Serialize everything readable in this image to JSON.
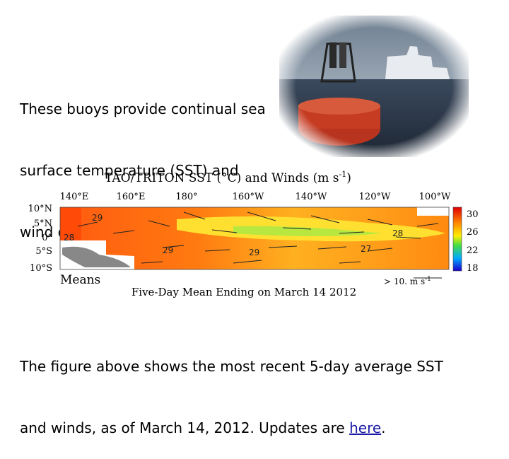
{
  "paragraph1": {
    "lines": [
      "These buoys provide continual sea",
      "surface temperature (SST) and",
      "wind data."
    ]
  },
  "figure": {
    "title": "TAO/TRITON SST (°C) and Winds (m s",
    "title_superscript": "-1",
    "title_end": ")",
    "longitudes": [
      "140°E",
      "160°E",
      "180°",
      "160°W",
      "140°W",
      "120°W",
      "100°W"
    ],
    "latitudes": [
      "10°N",
      "5°N",
      "0°",
      "5°S",
      "10°S"
    ],
    "colorbar_labels": [
      "30",
      "26",
      "22",
      "18"
    ],
    "contour_labels": [
      "29",
      "28",
      "29",
      "29",
      "28",
      "27"
    ],
    "means": "Means",
    "caption": "Five-Day Mean Ending on March 14 2012",
    "wind_key": "> 10. m s",
    "wind_key_superscript": "-1"
  },
  "paragraph2": {
    "line1": "The figure above shows the most recent 5-day average SST",
    "line2": "and winds, as of March 14, 2012. Updates are ",
    "link": "here",
    "end": "."
  }
}
